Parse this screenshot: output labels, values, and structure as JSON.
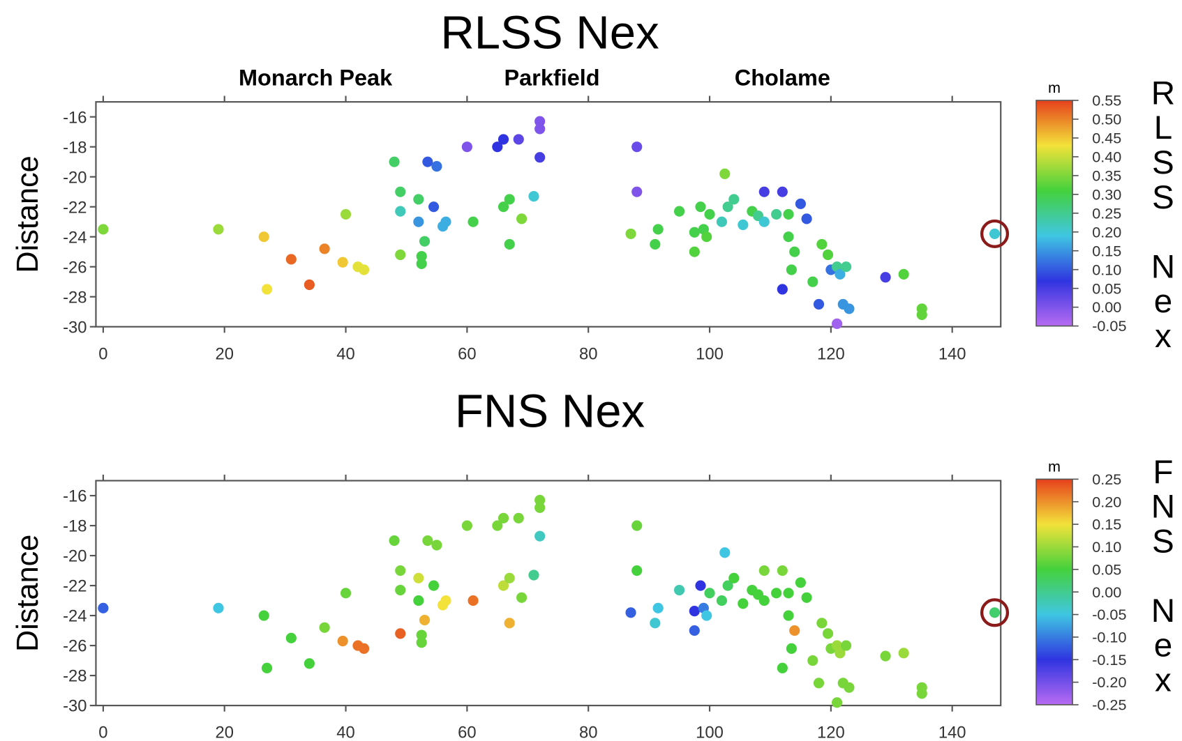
{
  "chart_data": [
    {
      "type": "scatter",
      "title": "RLSS Nex",
      "ylabel": "Distance",
      "side_label": "RLSS Nex",
      "colorbar_label": "m",
      "annotations": [
        {
          "text": "Monarch Peak",
          "x": 35
        },
        {
          "text": "Parkfield",
          "x": 74
        },
        {
          "text": "Cholame",
          "x": 112
        }
      ],
      "xlim": [
        -1.2,
        148
      ],
      "ylim": [
        -30,
        -15
      ],
      "xticks": [
        0,
        20,
        40,
        60,
        80,
        100,
        120,
        140
      ],
      "yticks": [
        -16,
        -18,
        -20,
        -22,
        -24,
        -26,
        -28,
        -30
      ],
      "clim": [
        -0.05,
        0.55
      ],
      "cticks": [
        0.55,
        {
          "value": 0.5,
          "label": "0.50"
        },
        0.45,
        {
          "value": 0.4,
          "label": "0.40"
        },
        0.35,
        {
          "value": 0.3,
          "label": "0.30"
        },
        0.25,
        {
          "value": 0.2,
          "label": "0.20"
        },
        0.15,
        {
          "value": 0.1,
          "label": "0.10"
        },
        0.05,
        {
          "value": 0,
          "label": "0.00"
        },
        -0.05
      ],
      "colormap": [
        "#b86bf2",
        "#2f34e0",
        "#3fc6e2",
        "#44d13c",
        "#f2e23a",
        "#e6401c"
      ],
      "highlight": {
        "x": 147,
        "y": -23.8,
        "color": "#8b1a1a"
      },
      "x": [
        0,
        19,
        26.5,
        27,
        31,
        34,
        36.5,
        40,
        39.5,
        42,
        43,
        48,
        49,
        49,
        49,
        52,
        52,
        53,
        52.5,
        52.5,
        53.5,
        55,
        54.5,
        56.5,
        56,
        60,
        61,
        65,
        66,
        66,
        67,
        67,
        68.5,
        69,
        71,
        72,
        72,
        72,
        87,
        88,
        88,
        91,
        91.5,
        95,
        97.5,
        97.5,
        98.5,
        99,
        99.5,
        100,
        102,
        102.5,
        103,
        104,
        105.5,
        107,
        108,
        109,
        109,
        111,
        112,
        112,
        113,
        113,
        113.5,
        114,
        115,
        116,
        117,
        118,
        118.5,
        119.5,
        120,
        121,
        121,
        121.5,
        122,
        122.5,
        123,
        129,
        132,
        135,
        135,
        147
      ],
      "y": [
        -23.5,
        -23.5,
        -24,
        -27.5,
        -25.5,
        -27.2,
        -24.8,
        -22.5,
        -25.7,
        -26,
        -26.2,
        -19,
        -21,
        -22.3,
        -25.2,
        -21.5,
        -23,
        -24.3,
        -25.3,
        -25.8,
        -19,
        -19.3,
        -22,
        -23,
        -23.3,
        -18,
        -23,
        -18,
        -17.5,
        -22,
        -21.5,
        -24.5,
        -17.5,
        -22.8,
        -21.3,
        -16.3,
        -16.8,
        -18.7,
        -23.8,
        -18,
        -21,
        -24.5,
        -23.5,
        -22.3,
        -25,
        -23.7,
        -22,
        -23.5,
        -24,
        -22.5,
        -23,
        -19.8,
        -22,
        -21.5,
        -23.2,
        -22.3,
        -22.6,
        -21,
        -23,
        -22.5,
        -21,
        -27.5,
        -22.5,
        -24,
        -26.2,
        -25,
        -21.8,
        -22.8,
        -27,
        -28.5,
        -24.5,
        -25.2,
        -26.2,
        -29.8,
        -26,
        -26.5,
        -28.5,
        -26,
        -28.8,
        -26.7,
        -26.5,
        -28.8,
        -29.2,
        -23.8
      ],
      "c": [
        0.35,
        0.37,
        0.45,
        0.43,
        0.52,
        0.53,
        0.5,
        0.37,
        0.45,
        0.42,
        0.42,
        0.28,
        0.28,
        0.22,
        0.35,
        0.28,
        0.15,
        0.28,
        0.3,
        0.3,
        0.1,
        0.12,
        0.1,
        0.17,
        0.17,
        0,
        0.3,
        0.07,
        0.07,
        0.3,
        0.3,
        0.3,
        0.03,
        0.35,
        0.2,
        0,
        0,
        0.05,
        0.35,
        0.02,
        0,
        0.3,
        0.3,
        0.3,
        0.32,
        0.3,
        0.3,
        0.3,
        0.32,
        0.3,
        0.22,
        0.35,
        0.25,
        0.25,
        0.2,
        0.3,
        0.25,
        0.05,
        0.2,
        0.25,
        0.05,
        0.07,
        0.3,
        0.3,
        0.3,
        0.3,
        0.1,
        0.1,
        0.3,
        0.1,
        0.32,
        0.32,
        0.12,
        -0.03,
        0.25,
        0.17,
        0.15,
        0.25,
        0.15,
        0.05,
        0.32,
        0.33,
        0.33,
        0.2
      ]
    },
    {
      "type": "scatter",
      "title": "FNS Nex",
      "ylabel": "Distance",
      "side_label": "FNS Nex",
      "colorbar_label": "m",
      "xlim": [
        -1.2,
        148
      ],
      "ylim": [
        -30,
        -15
      ],
      "xticks": [
        0,
        20,
        40,
        60,
        80,
        100,
        120,
        140
      ],
      "yticks": [
        -16,
        -18,
        -20,
        -22,
        -24,
        -26,
        -28,
        -30
      ],
      "clim": [
        -0.25,
        0.25
      ],
      "cticks": [
        0.25,
        {
          "value": 0.2,
          "label": "0.20"
        },
        0.15,
        {
          "value": 0.1,
          "label": "0.10"
        },
        0.05,
        {
          "value": 0,
          "label": "0.00"
        },
        -0.05,
        {
          "value": -0.1,
          "label": "-0.10"
        },
        -0.15,
        {
          "value": -0.2,
          "label": "-0.20"
        },
        -0.25
      ],
      "colormap": [
        "#b86bf2",
        "#2f34e0",
        "#3fc6e2",
        "#44d13c",
        "#f2e23a",
        "#e6401c"
      ],
      "highlight": {
        "x": 147,
        "y": -23.8,
        "color": "#8b1a1a"
      },
      "x": [
        0,
        19,
        26.5,
        27,
        31,
        34,
        36.5,
        40,
        39.5,
        42,
        43,
        48,
        49,
        49,
        49,
        52,
        52,
        53,
        52.5,
        52.5,
        53.5,
        55,
        54.5,
        56.5,
        56,
        60,
        61,
        65,
        66,
        66,
        67,
        67,
        68.5,
        69,
        71,
        72,
        72,
        72,
        87,
        88,
        88,
        91,
        91.5,
        95,
        97.5,
        97.5,
        98.5,
        99,
        99.5,
        100,
        102,
        102.5,
        103,
        104,
        105.5,
        107,
        108,
        109,
        109,
        111,
        112,
        112,
        113,
        113,
        113.5,
        114,
        115,
        116,
        117,
        118,
        118.5,
        119.5,
        120,
        121,
        121,
        121.5,
        122,
        122.5,
        123,
        129,
        132,
        135,
        135,
        147
      ],
      "y": [
        -23.5,
        -23.5,
        -24,
        -27.5,
        -25.5,
        -27.2,
        -24.8,
        -22.5,
        -25.7,
        -26,
        -26.2,
        -19,
        -21,
        -22.3,
        -25.2,
        -21.5,
        -23,
        -24.3,
        -25.3,
        -25.8,
        -19,
        -19.3,
        -22,
        -23,
        -23.3,
        -18,
        -23,
        -18,
        -17.5,
        -22,
        -21.5,
        -24.5,
        -17.5,
        -22.8,
        -21.3,
        -16.3,
        -16.8,
        -18.7,
        -23.8,
        -18,
        -21,
        -24.5,
        -23.5,
        -22.3,
        -25,
        -23.7,
        -22,
        -23.5,
        -24,
        -22.5,
        -23,
        -19.8,
        -22,
        -21.5,
        -23.2,
        -22.3,
        -22.6,
        -21,
        -23,
        -22.5,
        -21,
        -27.5,
        -22.5,
        -24,
        -26.2,
        -25,
        -21.8,
        -22.8,
        -27,
        -28.5,
        -24.5,
        -25.2,
        -26.2,
        -29.8,
        -26,
        -26.5,
        -28.5,
        -26,
        -28.8,
        -26.7,
        -26.5,
        -28.8,
        -29.2,
        -23.8
      ],
      "c": [
        -0.12,
        -0.05,
        0.05,
        0.05,
        0.05,
        0.05,
        0.08,
        0.07,
        0.2,
        0.22,
        0.22,
        0.07,
        0.08,
        0.07,
        0.23,
        0.13,
        0.05,
        0.18,
        0.07,
        0.07,
        0.08,
        0.08,
        0.05,
        0.15,
        0.15,
        0.08,
        0.22,
        0.08,
        0.08,
        0.12,
        0.1,
        0.18,
        0.08,
        0.08,
        0,
        0.08,
        0.08,
        -0.03,
        -0.12,
        0.07,
        0.05,
        -0.04,
        -0.05,
        -0.02,
        -0.12,
        -0.15,
        -0.15,
        -0.1,
        -0.05,
        0.03,
        0.03,
        -0.05,
        0.03,
        0.05,
        0.05,
        0.05,
        0.05,
        0.08,
        0.05,
        0.05,
        0.08,
        0.05,
        0.05,
        0.05,
        0.05,
        0.2,
        0.05,
        0.05,
        0.08,
        0.08,
        0.08,
        0.08,
        0.08,
        0.08,
        0.1,
        0.1,
        0.08,
        0.08,
        0.08,
        0.08,
        0.1,
        0.08,
        0.08,
        0.02
      ]
    }
  ]
}
